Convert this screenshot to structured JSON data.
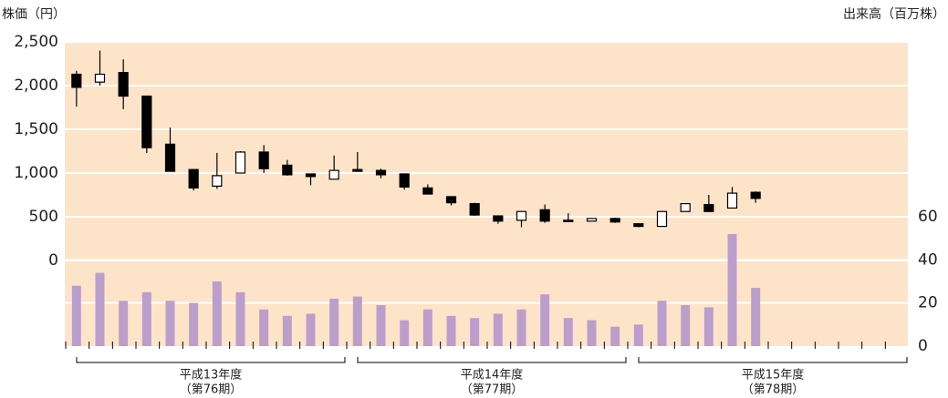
{
  "chart_data": {
    "type": "candlestick",
    "y_axis_label": "株価（円）",
    "y2_axis_label": "出来高（百万株）",
    "categories": [
      null,
      null,
      null,
      null,
      null,
      null,
      null,
      null,
      null,
      null,
      null,
      null,
      null,
      null,
      null,
      null,
      null,
      null,
      null,
      null,
      null,
      null,
      null,
      null,
      null,
      null,
      null,
      null,
      null,
      null,
      null,
      null,
      null,
      null,
      null,
      null
    ],
    "groups": [
      {
        "label": "平成13年度",
        "sublabel": "（第76期）"
      },
      {
        "label": "平成14年度",
        "sublabel": "（第77期）"
      },
      {
        "label": "平成15年度",
        "sublabel": "（第78期）"
      }
    ],
    "open": [
      2130,
      2040,
      2150,
      1880,
      1330,
      1040,
      850,
      1000,
      1240,
      1090,
      990,
      930,
      1040,
      1030,
      990,
      830,
      730,
      650,
      510,
      460,
      580,
      460,
      450,
      480,
      420,
      390,
      560,
      640,
      600,
      780,
      null,
      null,
      null,
      null,
      null,
      null
    ],
    "high": [
      2170,
      2400,
      2300,
      1880,
      1520,
      1040,
      1230,
      1250,
      1320,
      1150,
      990,
      1200,
      1240,
      1050,
      990,
      870,
      730,
      660,
      510,
      560,
      640,
      540,
      480,
      490,
      420,
      560,
      650,
      750,
      840,
      790,
      null,
      null,
      null,
      null,
      null,
      null
    ],
    "low": [
      1760,
      2000,
      1730,
      1230,
      1020,
      800,
      820,
      1000,
      1000,
      970,
      860,
      930,
      1020,
      940,
      810,
      760,
      630,
      510,
      420,
      380,
      430,
      450,
      450,
      430,
      380,
      390,
      560,
      560,
      600,
      660,
      null,
      null,
      null,
      null,
      null,
      null
    ],
    "close": [
      1980,
      2130,
      1880,
      1290,
      1020,
      830,
      970,
      1240,
      1050,
      980,
      960,
      1030,
      1020,
      980,
      840,
      760,
      660,
      520,
      450,
      560,
      450,
      450,
      480,
      440,
      390,
      560,
      650,
      560,
      770,
      710,
      null,
      null,
      null,
      null,
      null,
      null
    ],
    "volume": [
      28,
      34,
      21,
      25,
      21,
      20,
      30,
      25,
      17,
      14,
      15,
      22,
      23,
      19,
      12,
      17,
      14,
      13,
      15,
      17,
      24,
      13,
      12,
      9,
      10,
      21,
      19,
      18,
      52,
      27,
      null,
      null,
      null,
      null,
      null,
      null
    ],
    "ylim": [
      0,
      2500
    ],
    "yticks": [
      0,
      500,
      {
        "value": 1000,
        "label": "1,000"
      },
      {
        "value": 1500,
        "label": "1,500"
      },
      {
        "value": 2000,
        "label": "2,000"
      },
      {
        "value": 2500,
        "label": "2,500"
      }
    ],
    "y2lim": [
      0,
      60
    ],
    "y2ticks": [
      0,
      20,
      40,
      60
    ],
    "grid": true,
    "background": "#fde4c9",
    "up_color": "#ffffff",
    "down_color": "#000000",
    "volume_color": "#bc9ecc"
  }
}
